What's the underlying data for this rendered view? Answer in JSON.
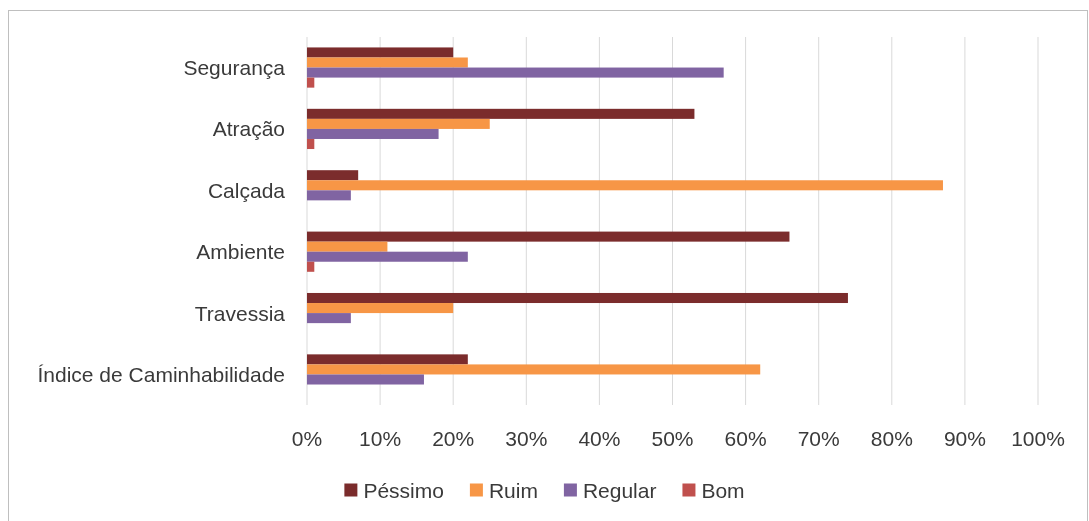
{
  "chart_data": {
    "type": "bar",
    "orientation": "horizontal",
    "categories": [
      "Segurança",
      "Atração",
      "Calçada",
      "Ambiente",
      "Travessia",
      "Índice de Caminhabilidade"
    ],
    "series": [
      {
        "name": "Péssimo",
        "color": "#7b2c2c",
        "values": [
          20,
          53,
          7,
          66,
          74,
          22
        ]
      },
      {
        "name": "Ruim",
        "color": "#f79646",
        "values": [
          22,
          25,
          87,
          11,
          20,
          62
        ]
      },
      {
        "name": "Regular",
        "color": "#8064a2",
        "values": [
          57,
          18,
          6,
          22,
          6,
          16
        ]
      },
      {
        "name": "Bom",
        "color": "#c0504d",
        "values": [
          1,
          1,
          0,
          1,
          0,
          0
        ]
      }
    ],
    "xlim": [
      0,
      100
    ],
    "xticks": [
      {
        "value": 0,
        "label": "0%"
      },
      {
        "value": 10,
        "label": "10%"
      },
      {
        "value": 20,
        "label": "20%"
      },
      {
        "value": 30,
        "label": "30%"
      },
      {
        "value": 40,
        "label": "40%"
      },
      {
        "value": 50,
        "label": "50%"
      },
      {
        "value": 60,
        "label": "60%"
      },
      {
        "value": 70,
        "label": "70%"
      },
      {
        "value": 80,
        "label": "80%"
      },
      {
        "value": 90,
        "label": "90%"
      },
      {
        "value": 100,
        "label": "100%"
      }
    ],
    "grid": "x",
    "legend": "bottom"
  }
}
